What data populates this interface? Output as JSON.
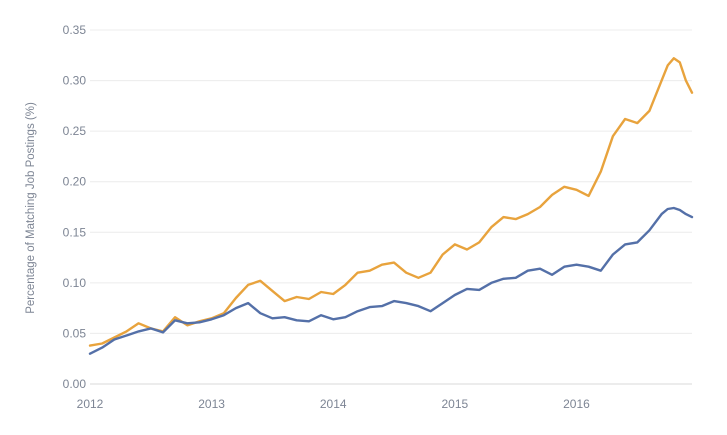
{
  "chart_data": {
    "type": "line",
    "title": "",
    "xlabel": "",
    "ylabel": "Percentage of Matching Job Postings (%)",
    "xlim": [
      2012.0,
      2016.95
    ],
    "ylim": [
      0,
      0.35
    ],
    "yticks": [
      "0.00",
      "0.05",
      "0.10",
      "0.15",
      "0.20",
      "0.25",
      "0.30",
      "0.35"
    ],
    "xticks": [
      "2012",
      "2013",
      "2014",
      "2015",
      "2016"
    ],
    "grid": true,
    "legend": "none",
    "series": [
      {
        "color": "#e8a33d",
        "x": [
          2012.0,
          2012.1,
          2012.2,
          2012.3,
          2012.4,
          2012.5,
          2012.6,
          2012.7,
          2012.8,
          2012.9,
          2013.0,
          2013.1,
          2013.2,
          2013.3,
          2013.4,
          2013.5,
          2013.6,
          2013.7,
          2013.8,
          2013.9,
          2014.0,
          2014.1,
          2014.2,
          2014.3,
          2014.4,
          2014.5,
          2014.6,
          2014.7,
          2014.8,
          2014.9,
          2015.0,
          2015.1,
          2015.2,
          2015.3,
          2015.4,
          2015.5,
          2015.6,
          2015.7,
          2015.8,
          2015.9,
          2016.0,
          2016.1,
          2016.2,
          2016.3,
          2016.4,
          2016.5,
          2016.6,
          2016.7,
          2016.75,
          2016.8,
          2016.85,
          2016.9,
          2016.95
        ],
        "y": [
          0.038,
          0.04,
          0.046,
          0.052,
          0.06,
          0.055,
          0.052,
          0.066,
          0.058,
          0.062,
          0.065,
          0.07,
          0.085,
          0.098,
          0.102,
          0.092,
          0.082,
          0.086,
          0.084,
          0.091,
          0.089,
          0.098,
          0.11,
          0.112,
          0.118,
          0.12,
          0.11,
          0.105,
          0.11,
          0.128,
          0.138,
          0.133,
          0.14,
          0.155,
          0.165,
          0.163,
          0.168,
          0.175,
          0.187,
          0.195,
          0.192,
          0.186,
          0.21,
          0.245,
          0.262,
          0.258,
          0.27,
          0.3,
          0.315,
          0.322,
          0.318,
          0.3,
          0.288
        ]
      },
      {
        "color": "#5470a8",
        "x": [
          2012.0,
          2012.1,
          2012.2,
          2012.3,
          2012.4,
          2012.5,
          2012.6,
          2012.7,
          2012.8,
          2012.9,
          2013.0,
          2013.1,
          2013.2,
          2013.3,
          2013.4,
          2013.5,
          2013.6,
          2013.7,
          2013.8,
          2013.9,
          2014.0,
          2014.1,
          2014.2,
          2014.3,
          2014.4,
          2014.5,
          2014.6,
          2014.7,
          2014.8,
          2014.9,
          2015.0,
          2015.1,
          2015.2,
          2015.3,
          2015.4,
          2015.5,
          2015.6,
          2015.7,
          2015.8,
          2015.9,
          2016.0,
          2016.1,
          2016.2,
          2016.3,
          2016.4,
          2016.5,
          2016.6,
          2016.7,
          2016.75,
          2016.8,
          2016.85,
          2016.9,
          2016.95
        ],
        "y": [
          0.03,
          0.036,
          0.044,
          0.048,
          0.052,
          0.055,
          0.051,
          0.063,
          0.06,
          0.061,
          0.064,
          0.068,
          0.075,
          0.08,
          0.07,
          0.065,
          0.066,
          0.063,
          0.062,
          0.068,
          0.064,
          0.066,
          0.072,
          0.076,
          0.077,
          0.082,
          0.08,
          0.077,
          0.072,
          0.08,
          0.088,
          0.094,
          0.093,
          0.1,
          0.104,
          0.105,
          0.112,
          0.114,
          0.108,
          0.116,
          0.118,
          0.116,
          0.112,
          0.128,
          0.138,
          0.14,
          0.152,
          0.168,
          0.173,
          0.174,
          0.172,
          0.168,
          0.165
        ]
      }
    ]
  }
}
